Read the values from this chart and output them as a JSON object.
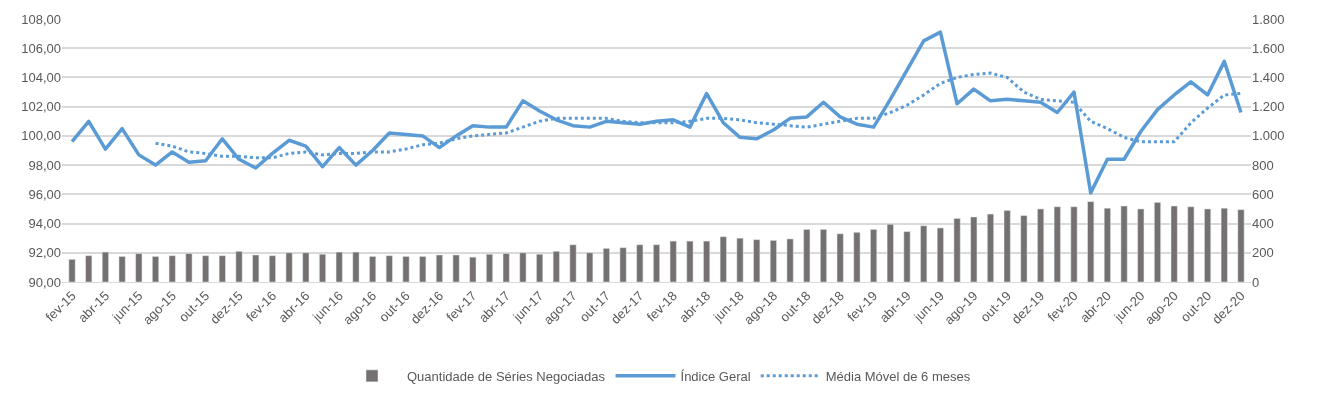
{
  "chart_data": {
    "type": "line",
    "categories": [
      "fev-15",
      null,
      "abr-15",
      null,
      "jun-15",
      null,
      "ago-15",
      null,
      "out-15",
      null,
      "dez-15",
      null,
      "fev-16",
      null,
      "abr-16",
      null,
      "jun-16",
      null,
      "ago-16",
      null,
      "out-16",
      null,
      "dez-16",
      null,
      "fev-17",
      null,
      "abr-17",
      null,
      "jun-17",
      null,
      "ago-17",
      null,
      "out-17",
      null,
      "dez-17",
      null,
      "fev-18",
      null,
      "abr-18",
      null,
      "jun-18",
      null,
      "ago-18",
      null,
      "out-18",
      null,
      "dez-18",
      null,
      "fev-19",
      null,
      "abr-19",
      null,
      "jun-19",
      null,
      "ago-19",
      null,
      "out-19",
      null,
      "dez-19",
      null,
      "fev-20",
      null,
      "abr-20",
      null,
      "jun-20",
      null,
      "ago-20",
      null,
      "out-20",
      null,
      "dez-20"
    ],
    "series": [
      {
        "name": "Quantidade de Séries Negociadas",
        "type": "bar",
        "axis": "y2",
        "color": "#767171",
        "values": [
          155,
          180,
          205,
          175,
          195,
          175,
          180,
          195,
          180,
          180,
          210,
          185,
          180,
          200,
          200,
          190,
          205,
          205,
          175,
          180,
          175,
          175,
          185,
          185,
          170,
          190,
          195,
          200,
          190,
          210,
          255,
          200,
          230,
          235,
          255,
          255,
          280,
          280,
          280,
          310,
          300,
          290,
          285,
          295,
          360,
          360,
          330,
          340,
          360,
          395,
          345,
          385,
          370,
          435,
          445,
          465,
          490,
          455,
          500,
          515,
          515,
          550,
          505,
          520,
          500,
          545,
          520,
          515,
          500,
          505,
          495
        ]
      },
      {
        "name": "Índice Geral",
        "line_style": "solid",
        "color": "#5b9bd5",
        "values": [
          99.6,
          101.0,
          99.1,
          100.5,
          98.7,
          98.0,
          98.9,
          98.2,
          98.3,
          99.8,
          98.4,
          97.8,
          98.8,
          99.7,
          99.3,
          97.9,
          99.2,
          98.0,
          99.0,
          100.2,
          100.1,
          100.0,
          99.2,
          100.0,
          100.7,
          100.6,
          100.6,
          102.4,
          101.7,
          101.1,
          100.7,
          100.6,
          101.0,
          100.9,
          100.8,
          101.0,
          101.1,
          100.6,
          102.9,
          100.9,
          99.9,
          99.8,
          100.4,
          101.2,
          101.3,
          102.3,
          101.3,
          100.8,
          100.6,
          102.5,
          104.5,
          106.5,
          107.1,
          102.2,
          103.2,
          102.4,
          102.5,
          102.4,
          102.3,
          101.6,
          103.0,
          96.1,
          98.4,
          98.4,
          100.3,
          101.8,
          102.8,
          103.7,
          102.8,
          105.1,
          101.6
        ]
      },
      {
        "name": "Média Móvel de 6 meses",
        "line_style": "dotted",
        "color": "#5b9bd5",
        "values": [
          null,
          null,
          null,
          null,
          null,
          99.5,
          99.3,
          98.9,
          98.8,
          98.6,
          98.6,
          98.5,
          98.5,
          98.8,
          98.9,
          98.7,
          98.8,
          98.8,
          98.9,
          98.9,
          99.1,
          99.4,
          99.5,
          99.8,
          100.0,
          100.1,
          100.2,
          100.6,
          101.0,
          101.2,
          101.2,
          101.2,
          101.2,
          101.0,
          100.9,
          100.9,
          100.9,
          101.0,
          101.2,
          101.2,
          101.1,
          100.9,
          100.8,
          100.7,
          100.6,
          100.8,
          101.0,
          101.2,
          101.2,
          101.6,
          102.1,
          102.8,
          103.6,
          104.0,
          104.2,
          104.3,
          104.0,
          103.0,
          102.5,
          102.4,
          102.3,
          101.0,
          100.5,
          99.9,
          99.6,
          99.6,
          99.6,
          100.9,
          101.9,
          102.8,
          102.9
        ]
      }
    ],
    "ylim": [
      90,
      108
    ],
    "yticks": [
      {
        "value": 90,
        "label": "90,00"
      },
      {
        "value": 92,
        "label": "92,00"
      },
      {
        "value": 94,
        "label": "94,00"
      },
      {
        "value": 96,
        "label": "96,00"
      },
      {
        "value": 98,
        "label": "98,00"
      },
      {
        "value": 100,
        "label": "100,00"
      },
      {
        "value": 102,
        "label": "102,00"
      },
      {
        "value": 104,
        "label": "104,00"
      },
      {
        "value": 106,
        "label": "106,00"
      },
      {
        "value": 108,
        "label": "108,00"
      }
    ],
    "y2lim": [
      0,
      1800
    ],
    "y2ticks": [
      0,
      200,
      400,
      600,
      800,
      {
        "value": 1000,
        "label": "1.000"
      },
      {
        "value": 1200,
        "label": "1.200"
      },
      {
        "value": 1400,
        "label": "1.400"
      },
      {
        "value": 1600,
        "label": "1.600"
      },
      {
        "value": 1800,
        "label": "1.800"
      }
    ],
    "grid": "y",
    "legend": "bottom",
    "marker": "none"
  }
}
